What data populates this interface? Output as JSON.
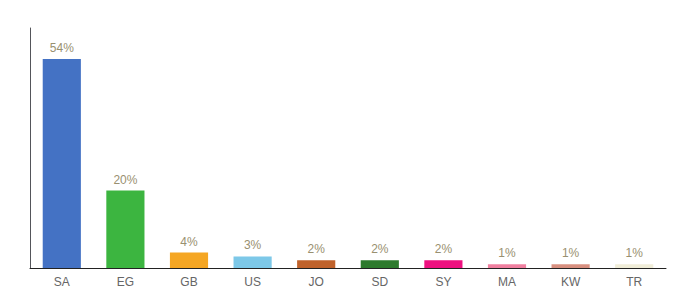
{
  "chart_data": {
    "type": "bar",
    "categories": [
      "SA",
      "EG",
      "GB",
      "US",
      "JO",
      "SD",
      "SY",
      "MA",
      "KW",
      "TR"
    ],
    "values": [
      54,
      20,
      4,
      3,
      2,
      2,
      2,
      1,
      1,
      1
    ],
    "value_labels": [
      "54%",
      "20%",
      "4%",
      "3%",
      "2%",
      "2%",
      "2%",
      "1%",
      "1%",
      "1%"
    ],
    "colors": [
      "#4472c4",
      "#3cb540",
      "#f5a623",
      "#7dc8e8",
      "#c0622b",
      "#2d7a2d",
      "#ee1180",
      "#f080a0",
      "#d89080",
      "#f0edd8"
    ],
    "ylim": [
      0,
      62
    ],
    "grid": false,
    "data_labels": true,
    "tick_labels": "x"
  }
}
